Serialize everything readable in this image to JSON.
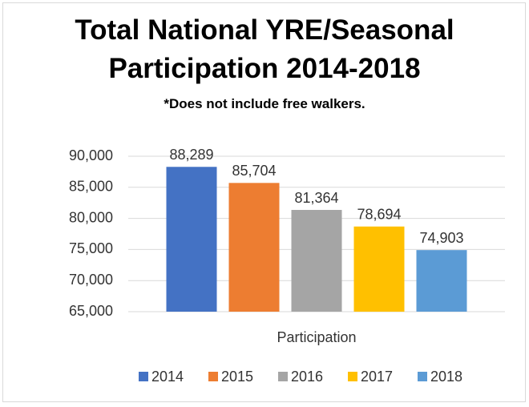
{
  "chart_data": {
    "type": "bar",
    "title": "Total National YRE/Seasonal Participation 2014-2018",
    "subtitle": "*Does not include free walkers.",
    "categories": [
      "Participation"
    ],
    "series": [
      {
        "name": "2014",
        "color": "#4472c4",
        "values": [
          88289
        ],
        "value_labels": [
          "88,289"
        ]
      },
      {
        "name": "2015",
        "color": "#ed7d31",
        "values": [
          85704
        ],
        "value_labels": [
          "85,704"
        ]
      },
      {
        "name": "2016",
        "color": "#a5a5a5",
        "values": [
          81364
        ],
        "value_labels": [
          "81,364"
        ]
      },
      {
        "name": "2017",
        "color": "#ffc000",
        "values": [
          78694
        ],
        "value_labels": [
          "78,694"
        ]
      },
      {
        "name": "2018",
        "color": "#5b9bd5",
        "values": [
          74903
        ],
        "value_labels": [
          "74,903"
        ]
      }
    ],
    "ylim": [
      65000,
      90000
    ],
    "yticks": [
      {
        "value": 65000,
        "label": "65,000"
      },
      {
        "value": 70000,
        "label": "70,000"
      },
      {
        "value": 75000,
        "label": "75,000"
      },
      {
        "value": 80000,
        "label": "80,000"
      },
      {
        "value": 85000,
        "label": "85,000"
      },
      {
        "value": 90000,
        "label": "90,000"
      }
    ],
    "grid": true,
    "legend": "bottom"
  }
}
